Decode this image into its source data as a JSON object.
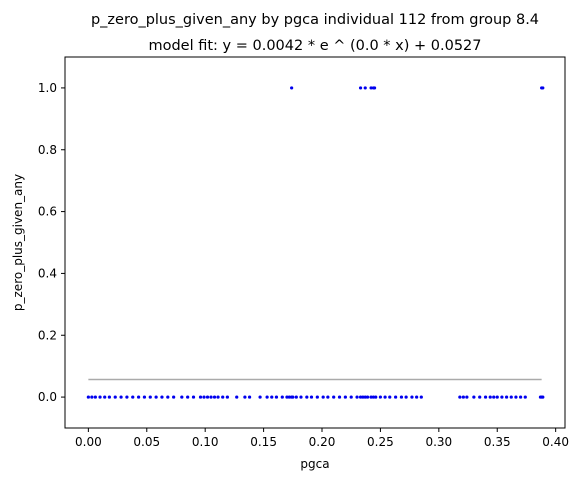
{
  "chart_data": {
    "type": "scatter",
    "title": "p_zero_plus_given_any by pgca individual 112 from group 8.4",
    "subtitle": "model fit: y = 0.0042 * e ^ (0.0 * x) + 0.0527",
    "xlabel": "pgca",
    "ylabel": "p_zero_plus_given_any",
    "xlim": [
      -0.02,
      0.408
    ],
    "ylim": [
      -0.1,
      1.1
    ],
    "x_ticks": [
      0.0,
      0.05,
      0.1,
      0.15,
      0.2,
      0.25,
      0.3,
      0.35,
      0.4
    ],
    "x_tick_labels": [
      "0.00",
      "0.05",
      "0.10",
      "0.15",
      "0.20",
      "0.25",
      "0.30",
      "0.35",
      "0.40"
    ],
    "y_ticks": [
      0.0,
      0.2,
      0.4,
      0.6,
      0.8,
      1.0
    ],
    "y_tick_labels": [
      "0.0",
      "0.2",
      "0.4",
      "0.6",
      "0.8",
      "1.0"
    ],
    "grid": false,
    "points_color": "#0000ee",
    "fit_color": "#aaaaaa",
    "fit_line": {
      "x": [
        0.0,
        0.388
      ],
      "y": [
        0.0569,
        0.0569
      ]
    },
    "points": {
      "x": [
        0.0,
        0.003,
        0.006,
        0.01,
        0.014,
        0.018,
        0.023,
        0.028,
        0.033,
        0.038,
        0.043,
        0.048,
        0.053,
        0.058,
        0.063,
        0.068,
        0.073,
        0.08,
        0.085,
        0.09,
        0.096,
        0.099,
        0.102,
        0.105,
        0.108,
        0.111,
        0.115,
        0.119,
        0.127,
        0.134,
        0.138,
        0.147,
        0.153,
        0.157,
        0.161,
        0.166,
        0.17,
        0.172,
        0.174,
        0.175,
        0.178,
        0.182,
        0.187,
        0.191,
        0.196,
        0.201,
        0.205,
        0.21,
        0.215,
        0.22,
        0.225,
        0.23,
        0.233,
        0.235,
        0.237,
        0.239,
        0.242,
        0.244,
        0.246,
        0.25,
        0.254,
        0.258,
        0.263,
        0.268,
        0.272,
        0.277,
        0.281,
        0.285,
        0.318,
        0.321,
        0.324,
        0.33,
        0.335,
        0.34,
        0.344,
        0.347,
        0.35,
        0.354,
        0.358,
        0.362,
        0.366,
        0.37,
        0.374,
        0.387,
        0.388,
        0.389,
        0.174,
        0.233,
        0.237,
        0.242,
        0.244,
        0.245,
        0.388,
        0.389
      ],
      "y": [
        0,
        0,
        0,
        0,
        0,
        0,
        0,
        0,
        0,
        0,
        0,
        0,
        0,
        0,
        0,
        0,
        0,
        0,
        0,
        0,
        0,
        0,
        0,
        0,
        0,
        0,
        0,
        0,
        0,
        0,
        0,
        0,
        0,
        0,
        0,
        0,
        0,
        0,
        0,
        0,
        0,
        0,
        0,
        0,
        0,
        0,
        0,
        0,
        0,
        0,
        0,
        0,
        0,
        0,
        0,
        0,
        0,
        0,
        0,
        0,
        0,
        0,
        0,
        0,
        0,
        0,
        0,
        0,
        0,
        0,
        0,
        0,
        0,
        0,
        0,
        0,
        0,
        0,
        0,
        0,
        0,
        0,
        0,
        0,
        0,
        0,
        1,
        1,
        1,
        1,
        1,
        1,
        1,
        1
      ]
    }
  }
}
